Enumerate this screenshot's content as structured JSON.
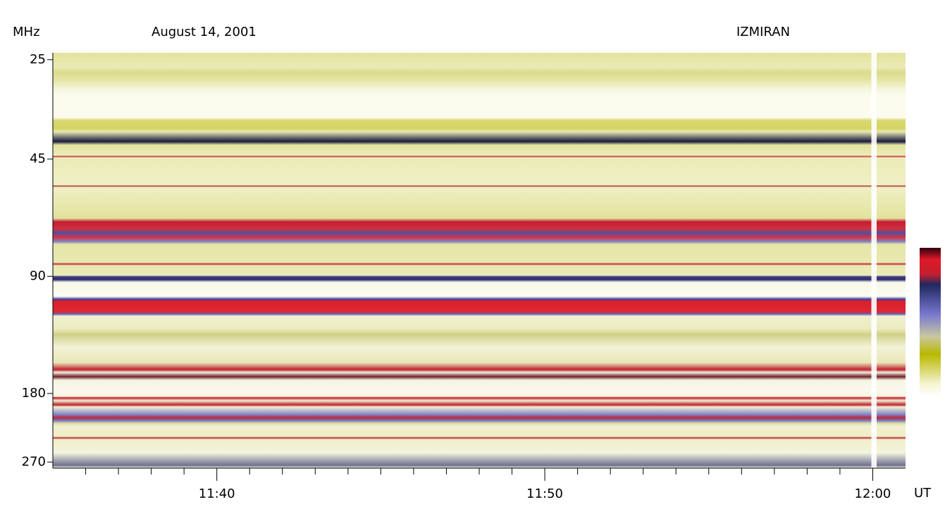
{
  "chart_data": {
    "type": "spectrogram",
    "title": "August 14, 2001",
    "subtitle": "IZMIRAN",
    "ylabel": "MHz",
    "xlabel": "UT",
    "ylim": [
      24,
      280
    ],
    "yscale": "log",
    "yinverted": true,
    "yticks": [
      25,
      45,
      90,
      180,
      270
    ],
    "xlim": [
      695,
      721
    ],
    "xticks": [
      {
        "value": 700,
        "label": "11:40"
      },
      {
        "value": 710,
        "label": "11:50"
      },
      {
        "value": 720,
        "label": "12:00"
      }
    ],
    "xminor_ticks": [
      696,
      697,
      698,
      699,
      701,
      702,
      703,
      704,
      705,
      706,
      707,
      708,
      709,
      711,
      712,
      713,
      714,
      715,
      716,
      717,
      718,
      719
    ]
  }
}
